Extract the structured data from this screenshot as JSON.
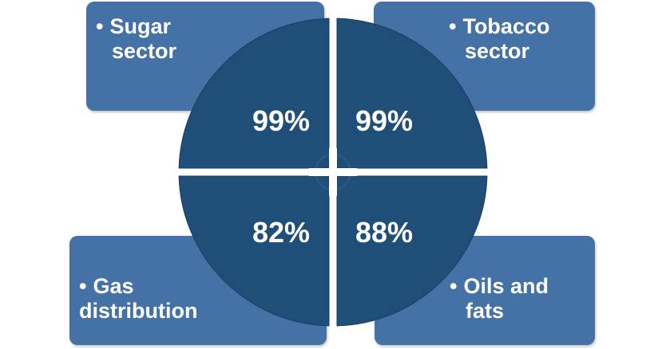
{
  "quadrants": [
    {
      "label": "Sugar sector",
      "label_line1": "Sugar",
      "label_line2": "sector",
      "value": "99%"
    },
    {
      "label": "Tobacco sector",
      "label_line1": "Tobacco",
      "label_line2": "sector",
      "value": "99%"
    },
    {
      "label": "Gas distribution",
      "label_line1": "Gas",
      "label_line2": "distribution",
      "value": "82%"
    },
    {
      "label": "Oils and fats",
      "label_line1": "Oils and",
      "label_line2": "fats",
      "value": "88%"
    }
  ],
  "bullet": "•",
  "colors": {
    "box": "#4471a6",
    "box_edge": "#3b6495",
    "circle": "#1f4e79",
    "circle_edge": "#163d63",
    "gap": "#ffffff"
  }
}
